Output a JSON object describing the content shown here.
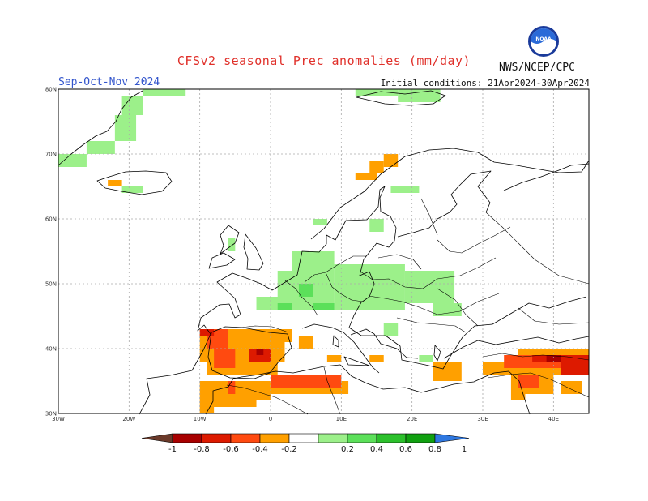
{
  "title": "CFSv2 seasonal Prec anomalies (mm/day)",
  "season": "Sep-Oct-Nov 2024",
  "initial_conditions": "Initial conditions: 21Apr2024-30Apr2024",
  "agency": "NWS/NCEP/CPC",
  "logo_text": "NOAA",
  "lat_labels": [
    "80N",
    "70N",
    "60N",
    "50N",
    "40N",
    "30N"
  ],
  "lon_labels": [
    "30W",
    "20W",
    "10W",
    "0",
    "10E",
    "20E",
    "30E",
    "40E"
  ],
  "colorbar": {
    "labels": [
      "-1",
      "-0.8",
      "-0.6",
      "-0.4",
      "-0.2",
      "0.2",
      "0.4",
      "0.6",
      "0.8",
      "1"
    ],
    "colors": [
      "#6b3a2a",
      "#a80000",
      "#dd1a00",
      "#ff4a10",
      "#ffa000",
      "#ffffff",
      "#9cf08a",
      "#5ce05a",
      "#2cc02c",
      "#10a010",
      "#2f78e0"
    ]
  },
  "chart_data": {
    "type": "heatmap",
    "variable": "Precipitation anomaly",
    "units": "mm/day",
    "lon_range": [
      -30,
      45
    ],
    "lat_range": [
      30,
      80
    ],
    "category_colors": {
      "w1": "#9cf08a",
      "w2": "#5ce05a",
      "d1": "#ffa000",
      "d2": "#ff4a10",
      "d3": "#dd1a00",
      "d4": "#a80000"
    },
    "regions": [
      {
        "cat": "w1",
        "lon": [
          -18,
          -12
        ],
        "lat": [
          79,
          80
        ]
      },
      {
        "cat": "w1",
        "lon": [
          -30,
          -26
        ],
        "lat": [
          68,
          70
        ]
      },
      {
        "cat": "w1",
        "lon": [
          -26,
          -22
        ],
        "lat": [
          70,
          72
        ]
      },
      {
        "cat": "w1",
        "lon": [
          -22,
          -19
        ],
        "lat": [
          72,
          76
        ]
      },
      {
        "cat": "w1",
        "lon": [
          -21,
          -18
        ],
        "lat": [
          76,
          79
        ]
      },
      {
        "cat": "w1",
        "lon": [
          -21,
          -18
        ],
        "lat": [
          64,
          65
        ]
      },
      {
        "cat": "d1",
        "lon": [
          -23,
          -21
        ],
        "lat": [
          65,
          66
        ]
      },
      {
        "cat": "w1",
        "lon": [
          12,
          18
        ],
        "lat": [
          79,
          80
        ]
      },
      {
        "cat": "w1",
        "lon": [
          18,
          24
        ],
        "lat": [
          78,
          80
        ]
      },
      {
        "cat": "d1",
        "lon": [
          12,
          15
        ],
        "lat": [
          66,
          67
        ]
      },
      {
        "cat": "d1",
        "lon": [
          14,
          16
        ],
        "lat": [
          67,
          69
        ]
      },
      {
        "cat": "d1",
        "lon": [
          16,
          18
        ],
        "lat": [
          68,
          70
        ]
      },
      {
        "cat": "w1",
        "lon": [
          17,
          21
        ],
        "lat": [
          64,
          65
        ]
      },
      {
        "cat": "w1",
        "lon": [
          6,
          8
        ],
        "lat": [
          59,
          60
        ]
      },
      {
        "cat": "w1",
        "lon": [
          14,
          16
        ],
        "lat": [
          58,
          60
        ]
      },
      {
        "cat": "w1",
        "lon": [
          -6,
          -5
        ],
        "lat": [
          55,
          57
        ]
      },
      {
        "cat": "w1",
        "lon": [
          3,
          9
        ],
        "lat": [
          52,
          55
        ]
      },
      {
        "cat": "w1",
        "lon": [
          9,
          19
        ],
        "lat": [
          46,
          53
        ]
      },
      {
        "cat": "w1",
        "lon": [
          19,
          26
        ],
        "lat": [
          47,
          52
        ]
      },
      {
        "cat": "w1",
        "lon": [
          1,
          9
        ],
        "lat": [
          46,
          52
        ]
      },
      {
        "cat": "w1",
        "lon": [
          -2,
          2
        ],
        "lat": [
          46,
          48
        ]
      },
      {
        "cat": "w1",
        "lon": [
          23,
          27
        ],
        "lat": [
          45,
          47
        ]
      },
      {
        "cat": "w2",
        "lon": [
          4,
          6
        ],
        "lat": [
          48,
          50
        ]
      },
      {
        "cat": "w2",
        "lon": [
          6,
          9
        ],
        "lat": [
          46,
          47
        ]
      },
      {
        "cat": "w2",
        "lon": [
          1,
          3
        ],
        "lat": [
          46,
          47
        ]
      },
      {
        "cat": "w1",
        "lon": [
          16,
          18
        ],
        "lat": [
          42,
          44
        ]
      },
      {
        "cat": "w1",
        "lon": [
          21,
          23
        ],
        "lat": [
          38,
          39
        ]
      },
      {
        "cat": "d1",
        "lon": [
          -10,
          2
        ],
        "lat": [
          38,
          43
        ]
      },
      {
        "cat": "d1",
        "lon": [
          0,
          3
        ],
        "lat": [
          41,
          43
        ]
      },
      {
        "cat": "d1",
        "lon": [
          -9,
          1
        ],
        "lat": [
          36,
          38
        ]
      },
      {
        "cat": "d2",
        "lon": [
          -9,
          -6
        ],
        "lat": [
          40,
          43
        ]
      },
      {
        "cat": "d2",
        "lon": [
          -8,
          -5
        ],
        "lat": [
          37,
          40
        ]
      },
      {
        "cat": "d3",
        "lon": [
          -3,
          0
        ],
        "lat": [
          38,
          40
        ]
      },
      {
        "cat": "d4",
        "lon": [
          -2,
          -1
        ],
        "lat": [
          39,
          40
        ]
      },
      {
        "cat": "d3",
        "lon": [
          -10,
          -8
        ],
        "lat": [
          42,
          43
        ]
      },
      {
        "cat": "d1",
        "lon": [
          -10,
          -2
        ],
        "lat": [
          31,
          35
        ]
      },
      {
        "cat": "d1",
        "lon": [
          -10,
          -8
        ],
        "lat": [
          30,
          31
        ]
      },
      {
        "cat": "d2",
        "lon": [
          -6,
          -5
        ],
        "lat": [
          33,
          35
        ]
      },
      {
        "cat": "d1",
        "lon": [
          -4,
          0
        ],
        "lat": [
          32,
          35
        ]
      },
      {
        "cat": "d1",
        "lon": [
          0,
          11
        ],
        "lat": [
          33,
          35
        ]
      },
      {
        "cat": "d2",
        "lon": [
          0,
          10
        ],
        "lat": [
          34,
          36
        ]
      },
      {
        "cat": "d1",
        "lon": [
          4,
          6
        ],
        "lat": [
          40,
          42
        ]
      },
      {
        "cat": "d1",
        "lon": [
          8,
          10
        ],
        "lat": [
          38,
          39
        ]
      },
      {
        "cat": "d1",
        "lon": [
          14,
          16
        ],
        "lat": [
          38,
          39
        ]
      },
      {
        "cat": "d1",
        "lon": [
          23,
          27
        ],
        "lat": [
          35,
          38
        ]
      },
      {
        "cat": "d1",
        "lon": [
          30,
          45
        ],
        "lat": [
          36,
          38
        ]
      },
      {
        "cat": "d1",
        "lon": [
          35,
          45
        ],
        "lat": [
          38,
          40
        ]
      },
      {
        "cat": "d2",
        "lon": [
          33,
          45
        ],
        "lat": [
          37,
          39
        ]
      },
      {
        "cat": "d3",
        "lon": [
          37,
          45
        ],
        "lat": [
          38,
          39
        ]
      },
      {
        "cat": "d4",
        "lon": [
          39,
          41
        ],
        "lat": [
          38,
          39
        ]
      },
      {
        "cat": "d3",
        "lon": [
          41,
          45
        ],
        "lat": [
          36,
          38
        ]
      },
      {
        "cat": "d1",
        "lon": [
          34,
          40
        ],
        "lat": [
          33,
          36
        ]
      },
      {
        "cat": "d2",
        "lon": [
          35,
          38
        ],
        "lat": [
          34,
          36
        ]
      },
      {
        "cat": "d1",
        "lon": [
          41,
          44
        ],
        "lat": [
          33,
          35
        ]
      },
      {
        "cat": "d1",
        "lon": [
          34,
          36
        ],
        "lat": [
          32,
          33
        ]
      }
    ]
  }
}
